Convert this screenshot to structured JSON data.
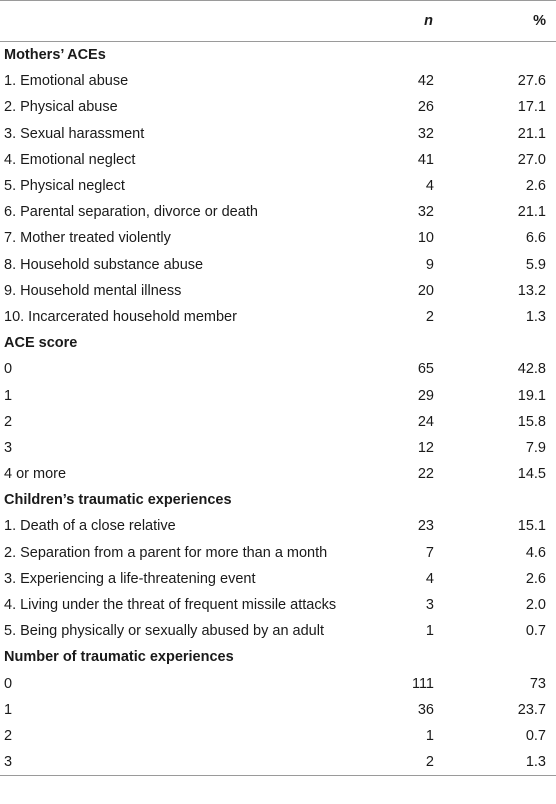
{
  "header": {
    "col_label": "",
    "col_n": "n",
    "col_pct": "%"
  },
  "sections": [
    {
      "title": "Mothers’ ACEs",
      "rows": [
        {
          "label": "1. Emotional abuse",
          "n": "42",
          "pct": "27.6"
        },
        {
          "label": "2. Physical abuse",
          "n": "26",
          "pct": "17.1"
        },
        {
          "label": "3. Sexual harassment",
          "n": "32",
          "pct": "21.1"
        },
        {
          "label": "4. Emotional neglect",
          "n": "41",
          "pct": "27.0"
        },
        {
          "label": "5. Physical neglect",
          "n": "4",
          "pct": "2.6"
        },
        {
          "label": "6. Parental separation, divorce or death",
          "n": "32",
          "pct": "21.1"
        },
        {
          "label": "7. Mother treated violently",
          "n": "10",
          "pct": "6.6"
        },
        {
          "label": "8. Household substance abuse",
          "n": "9",
          "pct": "5.9"
        },
        {
          "label": "9. Household mental illness",
          "n": "20",
          "pct": "13.2"
        },
        {
          "label": "10. Incarcerated household member",
          "n": "2",
          "pct": "1.3"
        }
      ]
    },
    {
      "title": "ACE score",
      "rows": [
        {
          "label": "0",
          "n": "65",
          "pct": "42.8"
        },
        {
          "label": "1",
          "n": "29",
          "pct": "19.1"
        },
        {
          "label": "2",
          "n": "24",
          "pct": "15.8"
        },
        {
          "label": "3",
          "n": "12",
          "pct": "7.9"
        },
        {
          "label": "4 or more",
          "n": "22",
          "pct": "14.5"
        }
      ]
    },
    {
      "title": "Children’s traumatic experiences",
      "rows": [
        {
          "label": "1. Death of a close relative",
          "n": "23",
          "pct": "15.1"
        },
        {
          "label": "2. Separation from a parent for more than a month",
          "n": "7",
          "pct": "4.6"
        },
        {
          "label": "3. Experiencing a life-threatening event",
          "n": "4",
          "pct": "2.6"
        },
        {
          "label": "4. Living under the threat of frequent missile attacks",
          "n": "3",
          "pct": "2.0"
        },
        {
          "label": "5. Being physically or sexually abused by an adult",
          "n": "1",
          "pct": "0.7"
        }
      ]
    },
    {
      "title": "Number of traumatic experiences",
      "rows": [
        {
          "label": "0",
          "n": "111",
          "pct": "73"
        },
        {
          "label": "1",
          "n": "36",
          "pct": "23.7"
        },
        {
          "label": "2",
          "n": "1",
          "pct": "0.7"
        },
        {
          "label": "3",
          "n": "2",
          "pct": "1.3"
        }
      ]
    }
  ]
}
